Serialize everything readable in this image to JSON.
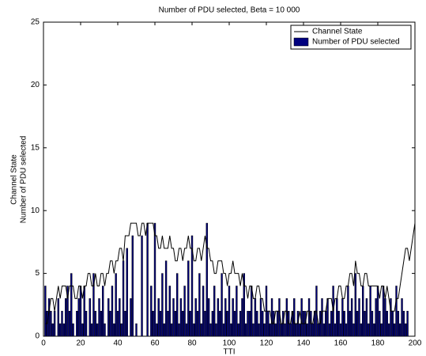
{
  "chart_data": {
    "type": "bar",
    "title": "Number of PDU selected, Beta = 10 000",
    "x_label": "TTI",
    "y_label": [
      "Channel State",
      "Number of PDU selected"
    ],
    "x": [
      1,
      2,
      3,
      4,
      5,
      6,
      7,
      8,
      9,
      10,
      11,
      12,
      13,
      14,
      15,
      16,
      17,
      18,
      19,
      20,
      21,
      22,
      23,
      24,
      25,
      26,
      27,
      28,
      29,
      30,
      31,
      32,
      33,
      34,
      35,
      36,
      37,
      38,
      39,
      40,
      41,
      42,
      43,
      44,
      45,
      46,
      47,
      48,
      49,
      50,
      51,
      52,
      53,
      54,
      55,
      56,
      57,
      58,
      59,
      60,
      61,
      62,
      63,
      64,
      65,
      66,
      67,
      68,
      69,
      70,
      71,
      72,
      73,
      74,
      75,
      76,
      77,
      78,
      79,
      80,
      81,
      82,
      83,
      84,
      85,
      86,
      87,
      88,
      89,
      90,
      91,
      92,
      93,
      94,
      95,
      96,
      97,
      98,
      99,
      100,
      101,
      102,
      103,
      104,
      105,
      106,
      107,
      108,
      109,
      110,
      111,
      112,
      113,
      114,
      115,
      116,
      117,
      118,
      119,
      120,
      121,
      122,
      123,
      124,
      125,
      126,
      127,
      128,
      129,
      130,
      131,
      132,
      133,
      134,
      135,
      136,
      137,
      138,
      139,
      140,
      141,
      142,
      143,
      144,
      145,
      146,
      147,
      148,
      149,
      150,
      151,
      152,
      153,
      154,
      155,
      156,
      157,
      158,
      159,
      160,
      161,
      162,
      163,
      164,
      165,
      166,
      167,
      168,
      169,
      170,
      171,
      172,
      173,
      174,
      175,
      176,
      177,
      178,
      179,
      180,
      181,
      182,
      183,
      184,
      185,
      186,
      187,
      188,
      189,
      190,
      191,
      192,
      193,
      194,
      195,
      196,
      197,
      198,
      199,
      200
    ],
    "series": [
      {
        "name": "Channel State",
        "type": "line",
        "color": "#000000",
        "values": [
          1,
          1,
          2,
          3,
          3,
          2,
          3,
          4,
          3,
          4,
          4,
          4,
          3,
          4,
          4,
          4,
          3,
          3,
          4,
          4,
          3,
          4,
          4,
          5,
          5,
          4,
          4,
          5,
          4,
          4,
          5,
          5,
          4,
          5,
          5,
          6,
          6,
          5,
          6,
          6,
          7,
          7,
          6,
          8,
          8,
          8,
          9,
          9,
          9,
          9,
          8,
          8,
          9,
          9,
          8,
          9,
          9,
          9,
          9,
          8,
          8,
          7,
          7,
          8,
          7,
          7,
          7,
          8,
          7,
          7,
          6,
          6,
          7,
          7,
          6,
          7,
          7,
          8,
          7,
          7,
          6,
          6,
          7,
          7,
          6,
          7,
          8,
          7,
          7,
          6,
          6,
          5,
          5,
          6,
          6,
          6,
          5,
          5,
          4,
          5,
          5,
          6,
          5,
          5,
          5,
          4,
          5,
          4,
          4,
          3,
          4,
          4,
          3,
          3,
          4,
          4,
          3,
          3,
          2,
          2,
          2,
          2,
          1,
          1,
          2,
          2,
          2,
          1,
          1,
          2,
          2,
          1,
          1,
          2,
          1,
          1,
          1,
          2,
          1,
          1,
          1,
          2,
          2,
          1,
          1,
          2,
          2,
          1,
          1,
          2,
          2,
          2,
          3,
          3,
          3,
          2,
          3,
          3,
          4,
          4,
          3,
          3,
          4,
          4,
          5,
          5,
          4,
          6,
          5,
          5,
          4,
          4,
          5,
          5,
          4,
          4,
          4,
          4,
          4,
          4,
          3,
          4,
          4,
          3,
          4,
          3,
          2,
          2,
          2,
          3,
          3,
          4,
          5,
          6,
          7,
          7,
          6,
          7,
          8,
          9
        ]
      },
      {
        "name": "Number of PDU selected",
        "type": "bar",
        "color": "#00007f",
        "values": [
          4,
          2,
          3,
          2,
          1,
          2,
          0,
          3,
          1,
          2,
          1,
          3,
          4,
          2,
          5,
          1,
          0,
          2,
          3,
          4,
          1,
          4,
          2,
          0,
          3,
          1,
          5,
          2,
          1,
          3,
          2,
          4,
          1,
          0,
          3,
          2,
          4,
          1,
          5,
          2,
          3,
          1,
          6,
          2,
          7,
          0,
          3,
          8,
          0,
          1,
          0,
          0,
          8,
          0,
          0,
          9,
          0,
          4,
          2,
          9,
          1,
          3,
          2,
          5,
          1,
          6,
          2,
          4,
          1,
          3,
          2,
          5,
          1,
          3,
          2,
          4,
          1,
          6,
          2,
          8,
          1,
          3,
          2,
          5,
          1,
          4,
          2,
          9,
          3,
          1,
          2,
          4,
          1,
          3,
          2,
          5,
          1,
          3,
          2,
          4,
          1,
          3,
          2,
          4,
          1,
          2,
          3,
          5,
          1,
          2,
          2,
          4,
          1,
          3,
          2,
          1,
          3,
          2,
          1,
          4,
          2,
          1,
          3,
          2,
          1,
          2,
          3,
          1,
          2,
          1,
          3,
          2,
          1,
          2,
          3,
          1,
          2,
          1,
          3,
          2,
          2,
          1,
          3,
          2,
          1,
          2,
          4,
          1,
          2,
          3,
          1,
          2,
          3,
          1,
          2,
          4,
          1,
          3,
          2,
          1,
          3,
          2,
          1,
          4,
          2,
          3,
          1,
          5,
          2,
          3,
          1,
          4,
          2,
          3,
          1,
          4,
          2,
          1,
          3,
          4,
          2,
          1,
          4,
          3,
          2,
          1,
          3,
          2,
          1,
          4,
          2,
          1,
          3,
          2,
          1,
          2,
          0,
          0,
          0,
          0
        ]
      }
    ],
    "xlim": [
      0,
      200
    ],
    "xticks": [
      0,
      20,
      40,
      60,
      80,
      100,
      120,
      140,
      160,
      180,
      200
    ],
    "ylim": [
      0,
      25
    ],
    "yticks": [
      0,
      5,
      10,
      15,
      20,
      25
    ],
    "legend": "top-right"
  }
}
